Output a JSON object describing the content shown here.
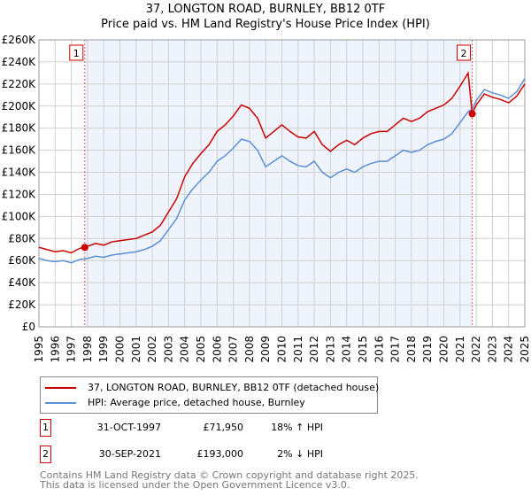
{
  "chart_data": {
    "type": "line",
    "title": "37, LONGTON ROAD, BURNLEY, BB12 0TF",
    "subtitle": "Price paid vs. HM Land Registry's House Price Index (HPI)",
    "xlim": [
      1995,
      2025
    ],
    "ylim": [
      0,
      260000
    ],
    "x_ticks": [
      "1995",
      "1996",
      "1997",
      "1998",
      "1999",
      "2000",
      "2001",
      "2002",
      "2003",
      "2004",
      "2005",
      "2006",
      "2007",
      "2008",
      "2009",
      "2010",
      "2011",
      "2012",
      "2013",
      "2014",
      "2015",
      "2016",
      "2017",
      "2018",
      "2019",
      "2020",
      "2021",
      "2022",
      "2023",
      "2024",
      "2025"
    ],
    "y_ticks": [
      "£0",
      "£20K",
      "£40K",
      "£60K",
      "£80K",
      "£100K",
      "£120K",
      "£140K",
      "£160K",
      "£180K",
      "£200K",
      "£220K",
      "£240K",
      "£260K"
    ],
    "grid": true,
    "x": [
      1995,
      1995.5,
      1996,
      1996.5,
      1997,
      1997.5,
      1998,
      1998.5,
      1999,
      1999.5,
      2000,
      2000.5,
      2001,
      2001.5,
      2002,
      2002.5,
      2003,
      2003.5,
      2004,
      2004.5,
      2005,
      2005.5,
      2006,
      2006.5,
      2007,
      2007.5,
      2008,
      2008.5,
      2009,
      2009.5,
      2010,
      2010.5,
      2011,
      2011.5,
      2012,
      2012.5,
      2013,
      2013.5,
      2014,
      2014.5,
      2015,
      2015.5,
      2016,
      2016.5,
      2017,
      2017.5,
      2018,
      2018.5,
      2019,
      2019.5,
      2020,
      2020.5,
      2021,
      2021.5,
      2021.75,
      2022,
      2022.5,
      2023,
      2023.5,
      2024,
      2024.5,
      2025
    ],
    "series": [
      {
        "name": "37, LONGTON ROAD, BURNLEY, BB12 0TF (detached house)",
        "color": "#cc0000",
        "values": [
          72000,
          70000,
          68000,
          69000,
          67000,
          71000,
          73000,
          75500,
          74000,
          77000,
          78000,
          79000,
          80000,
          83000,
          86000,
          92000,
          104000,
          116000,
          136000,
          148000,
          157000,
          165000,
          177000,
          183000,
          191000,
          201000,
          198000,
          189000,
          171000,
          177000,
          183000,
          177000,
          172000,
          171000,
          177000,
          165000,
          159000,
          165000,
          169000,
          165000,
          171000,
          175000,
          177000,
          177000,
          183000,
          189000,
          186000,
          189000,
          195000,
          198000,
          201000,
          207000,
          218000,
          230000,
          193000,
          201000,
          211000,
          208000,
          206000,
          203000,
          209000,
          220000
        ]
      },
      {
        "name": "HPI: Average price, detached house, Burnley",
        "color": "#5b8fd6",
        "values": [
          62000,
          60000,
          59000,
          60000,
          58000,
          61000,
          62000,
          64000,
          63000,
          65000,
          66000,
          67000,
          68000,
          70000,
          73000,
          78000,
          88000,
          98000,
          115000,
          125000,
          133000,
          140000,
          150000,
          155000,
          162000,
          170000,
          168000,
          160000,
          145000,
          150000,
          155000,
          150000,
          146000,
          145000,
          150000,
          140000,
          135000,
          140000,
          143000,
          140000,
          145000,
          148000,
          150000,
          150000,
          155000,
          160000,
          158000,
          160000,
          165000,
          168000,
          170000,
          175000,
          185000,
          195000,
          197000,
          205000,
          215000,
          212000,
          210000,
          207000,
          213000,
          225000
        ]
      }
    ],
    "shaded_range": [
      1997.83,
      2021.75
    ],
    "sales": [
      {
        "label": "1",
        "x": 1997.83,
        "date": "31-OCT-1997",
        "price": 71950,
        "price_text": "£71,950",
        "hpi": "18% ↑ HPI"
      },
      {
        "label": "2",
        "x": 2021.75,
        "date": "30-SEP-2021",
        "price": 193000,
        "price_text": "£193,000",
        "hpi": "2% ↓ HPI"
      }
    ]
  },
  "footer": [
    "Contains HM Land Registry data © Crown copyright and database right 2025.",
    "This data is licensed under the Open Government Licence v3.0."
  ]
}
